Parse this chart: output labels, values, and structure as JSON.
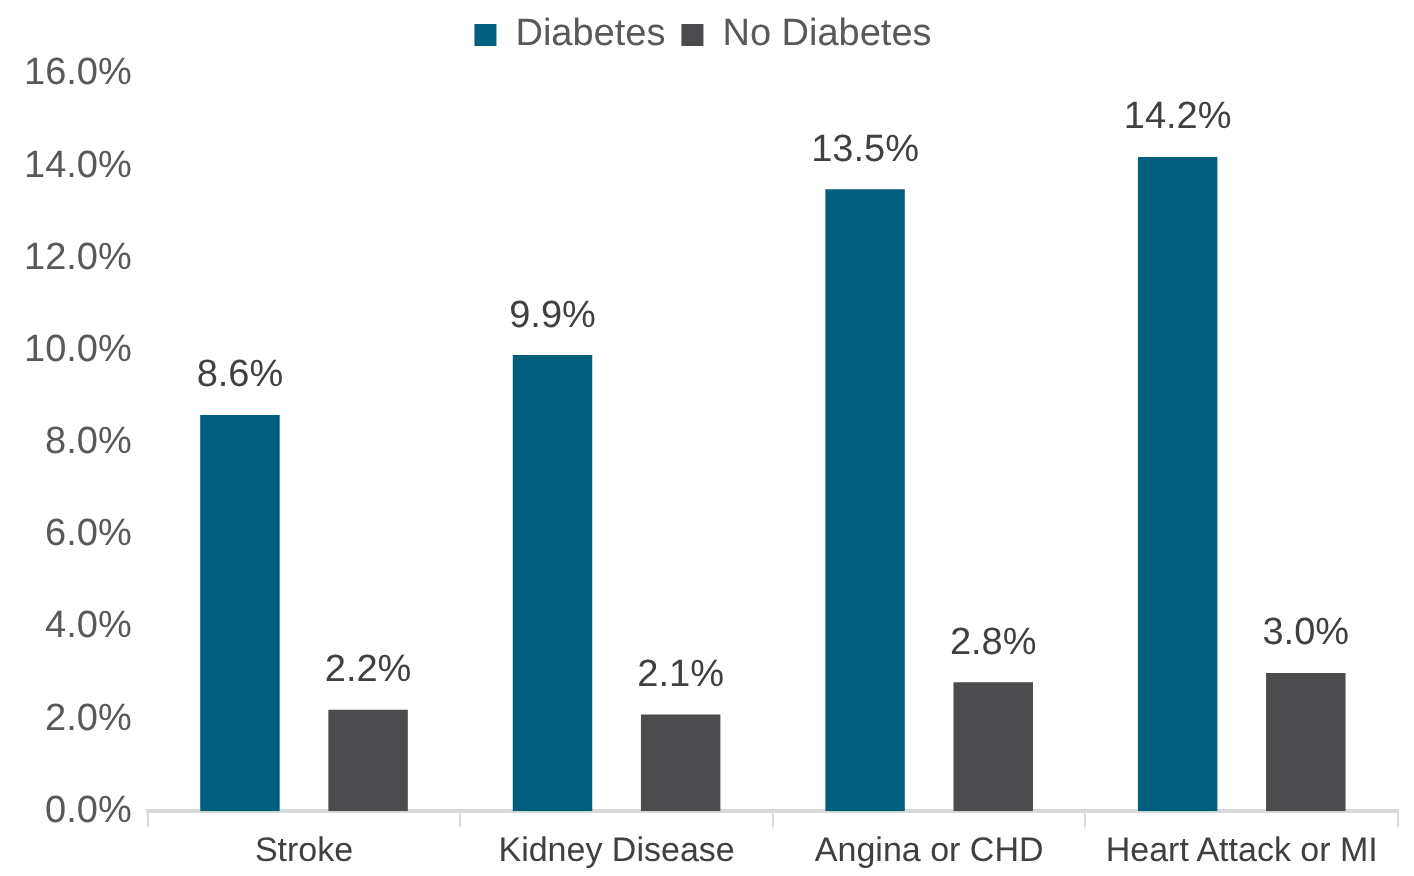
{
  "chart_data": {
    "type": "bar",
    "categories": [
      "Stroke",
      "Kidney Disease",
      "Angina or CHD",
      "Heart Attack or MI"
    ],
    "series": [
      {
        "name": "Diabetes",
        "color": "#005f7f",
        "values": [
          8.6,
          9.9,
          13.5,
          14.2
        ],
        "value_labels": [
          "8.6%",
          "9.9%",
          "13.5%",
          "14.2%"
        ]
      },
      {
        "name": "No Diabetes",
        "color": "#4b4b4d",
        "values": [
          2.2,
          2.1,
          2.8,
          3.0
        ],
        "value_labels": [
          "2.2%",
          "2.1%",
          "2.8%",
          "3.0%"
        ]
      }
    ],
    "ylim": [
      0,
      16
    ],
    "yticks": [
      {
        "value": 0,
        "label": "0.0%"
      },
      {
        "value": 2,
        "label": "2.0%"
      },
      {
        "value": 4,
        "label": "4.0%"
      },
      {
        "value": 6,
        "label": "6.0%"
      },
      {
        "value": 8,
        "label": "8.0%"
      },
      {
        "value": 10,
        "label": "10.0%"
      },
      {
        "value": 12,
        "label": "12.0%"
      },
      {
        "value": 14,
        "label": "14.0%"
      },
      {
        "value": 16,
        "label": "16.0%"
      }
    ],
    "grid": false,
    "legend": "top"
  }
}
